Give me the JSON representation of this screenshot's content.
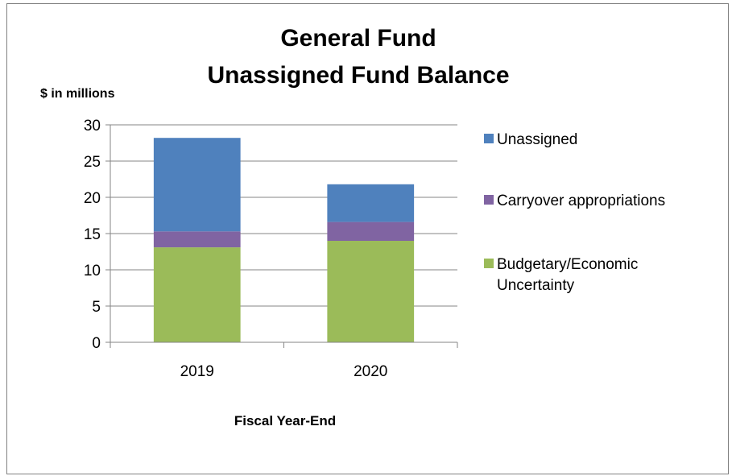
{
  "chart_data": {
    "type": "bar",
    "stacked": true,
    "title_lines": [
      "General Fund",
      "Unassigned Fund Balance"
    ],
    "ylabel": "$ in millions",
    "xlabel": "Fiscal Year-End",
    "categories": [
      "2019",
      "2020"
    ],
    "ylim": [
      0,
      30
    ],
    "yticks": [
      0,
      5,
      10,
      15,
      20,
      25,
      30
    ],
    "grid": true,
    "legend_position": "right",
    "series": [
      {
        "name": "Budgetary/Economic Uncertainty",
        "legend_lines": [
          "Budgetary/Economic",
          "Uncertainty"
        ],
        "color": "#9BBB59",
        "values": [
          13.1,
          14.0
        ]
      },
      {
        "name": "Carryover appropriations",
        "legend_lines": [
          "Carryover appropriations"
        ],
        "color": "#8064A2",
        "values": [
          2.2,
          2.6
        ]
      },
      {
        "name": "Unassigned",
        "legend_lines": [
          "Unassigned"
        ],
        "color": "#4F81BD",
        "values": [
          12.9,
          5.2
        ]
      }
    ],
    "legend_order": [
      2,
      1,
      0
    ]
  }
}
